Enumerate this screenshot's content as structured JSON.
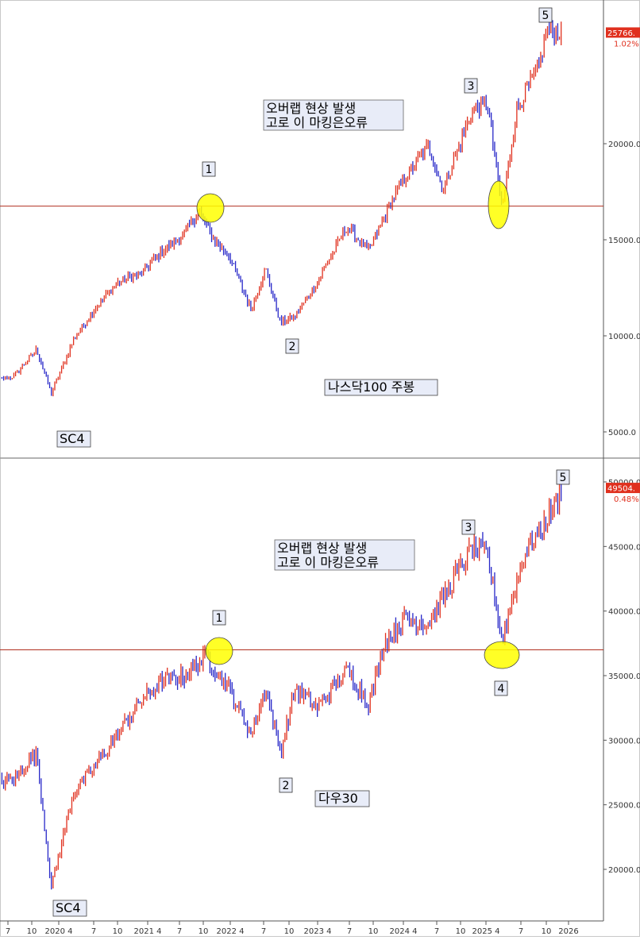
{
  "colors": {
    "up": "#e0301e",
    "down": "#2727c8",
    "support_line": "#b03020",
    "highlight_fill": "#ffff00",
    "label_box_fill": "#e8ecf8",
    "price_tag": "#e0301e"
  },
  "x_axis": {
    "ticks": [
      "7",
      "10",
      "2020 4",
      "7",
      "10",
      "2021 4",
      "7",
      "10",
      "2022 4",
      "7",
      "10",
      "2023 4",
      "7",
      "10",
      "2024 4",
      "7",
      "10",
      "2025 4",
      "7",
      "10",
      "2026"
    ]
  },
  "chart_data": [
    {
      "type": "candlestick",
      "note": "오버랩 현상 발생\n고로 이 마킹은오류",
      "series_label": "나스닥100 주봉",
      "scale_label": "SC4",
      "last_price_tag": "25766.",
      "last_change_pct": "1.02%",
      "y_ticks": [
        "20000.0",
        "15000.0",
        "10000.0",
        "5000.0"
      ],
      "ylim": [
        3500,
        27000
      ],
      "support_level": 16750,
      "wave_labels": [
        "1",
        "2",
        "3",
        "5"
      ],
      "path": [
        [
          "2019-06",
          7600
        ],
        [
          "2019-10",
          7900
        ],
        [
          "2020-01",
          9300
        ],
        [
          "2020-03",
          7000
        ],
        [
          "2020-06",
          9800
        ],
        [
          "2020-09",
          11500
        ],
        [
          "2020-12",
          12800
        ],
        [
          "2021-03",
          13200
        ],
        [
          "2021-06",
          14400
        ],
        [
          "2021-09",
          15300
        ],
        [
          "2021-11",
          16500
        ],
        [
          "2022-01",
          15000
        ],
        [
          "2022-03",
          14200
        ],
        [
          "2022-06",
          11400
        ],
        [
          "2022-08",
          13500
        ],
        [
          "2022-10",
          10700
        ],
        [
          "2022-12",
          11000
        ],
        [
          "2023-03",
          12800
        ],
        [
          "2023-07",
          15700
        ],
        [
          "2023-10",
          14400
        ],
        [
          "2024-01",
          17000
        ],
        [
          "2024-03",
          18300
        ],
        [
          "2024-06",
          19900
        ],
        [
          "2024-08",
          17600
        ],
        [
          "2024-12",
          21800
        ],
        [
          "2025-02",
          22100
        ],
        [
          "2025-04",
          16600
        ],
        [
          "2025-06",
          21800
        ],
        [
          "2025-09",
          24000
        ],
        [
          "2025-10",
          25900
        ],
        [
          "2025-12",
          25766
        ]
      ]
    },
    {
      "type": "candlestick",
      "note": "오버랩 현상 발생\n고로 이 마킹은오류",
      "series_label": "다우30",
      "scale_label": "SC4",
      "last_price_tag": "49504.",
      "last_change_pct": "0.48%",
      "y_ticks": [
        "50000.0",
        "45000.0",
        "40000.0",
        "35000.0",
        "30000.0",
        "25000.0",
        "20000.0"
      ],
      "ylim": [
        15000,
        51000
      ],
      "support_level": 37000,
      "wave_labels": [
        "1",
        "2",
        "3",
        "4",
        "5"
      ],
      "path": [
        [
          "2019-06",
          26500
        ],
        [
          "2019-10",
          27000
        ],
        [
          "2020-01",
          29000
        ],
        [
          "2020-03",
          18600
        ],
        [
          "2020-06",
          26000
        ],
        [
          "2020-09",
          28000
        ],
        [
          "2020-12",
          30500
        ],
        [
          "2021-03",
          33000
        ],
        [
          "2021-06",
          34500
        ],
        [
          "2021-09",
          35000
        ],
        [
          "2021-12",
          36500
        ],
        [
          "2022-03",
          34000
        ],
        [
          "2022-06",
          30500
        ],
        [
          "2022-08",
          34000
        ],
        [
          "2022-10",
          29000
        ],
        [
          "2022-12",
          34000
        ],
        [
          "2023-03",
          32500
        ],
        [
          "2023-07",
          35500
        ],
        [
          "2023-10",
          32800
        ],
        [
          "2023-12",
          37500
        ],
        [
          "2024-03",
          39500
        ],
        [
          "2024-06",
          39000
        ],
        [
          "2024-09",
          42000
        ],
        [
          "2024-12",
          45000
        ],
        [
          "2025-02",
          44500
        ],
        [
          "2025-04",
          37800
        ],
        [
          "2025-07",
          44500
        ],
        [
          "2025-09",
          46000
        ],
        [
          "2025-11",
          48000
        ],
        [
          "2025-12",
          49504
        ]
      ]
    }
  ]
}
